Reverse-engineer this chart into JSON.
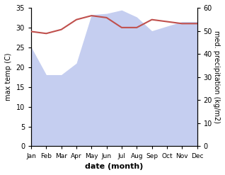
{
  "months": [
    "Jan",
    "Feb",
    "Mar",
    "Apr",
    "May",
    "Jun",
    "Jul",
    "Aug",
    "Sep",
    "Oct",
    "Nov",
    "Dec"
  ],
  "x": [
    0,
    1,
    2,
    3,
    4,
    5,
    6,
    7,
    8,
    9,
    10,
    11
  ],
  "max_temp": [
    29.0,
    28.5,
    29.5,
    32.0,
    33.0,
    32.5,
    30.0,
    30.0,
    32.0,
    31.5,
    31.0,
    31.0
  ],
  "precipitation": [
    43.0,
    31.0,
    31.0,
    36.0,
    57.0,
    57.5,
    59.0,
    56.0,
    50.0,
    52.0,
    54.0,
    54.0
  ],
  "temp_color": "#c0504d",
  "precip_fill_color": "#c5cef0",
  "temp_ylim": [
    0,
    35
  ],
  "precip_ylim": [
    0,
    60
  ],
  "temp_yticks": [
    0,
    5,
    10,
    15,
    20,
    25,
    30,
    35
  ],
  "precip_yticks": [
    0,
    10,
    20,
    30,
    40,
    50,
    60
  ],
  "xlabel": "date (month)",
  "ylabel_left": "max temp (C)",
  "ylabel_right": "med. precipitation (kg/m2)",
  "background_color": "#ffffff",
  "temp_linewidth": 1.5,
  "label_fontsize": 7,
  "tick_fontsize": 7,
  "xlabel_fontsize": 8
}
